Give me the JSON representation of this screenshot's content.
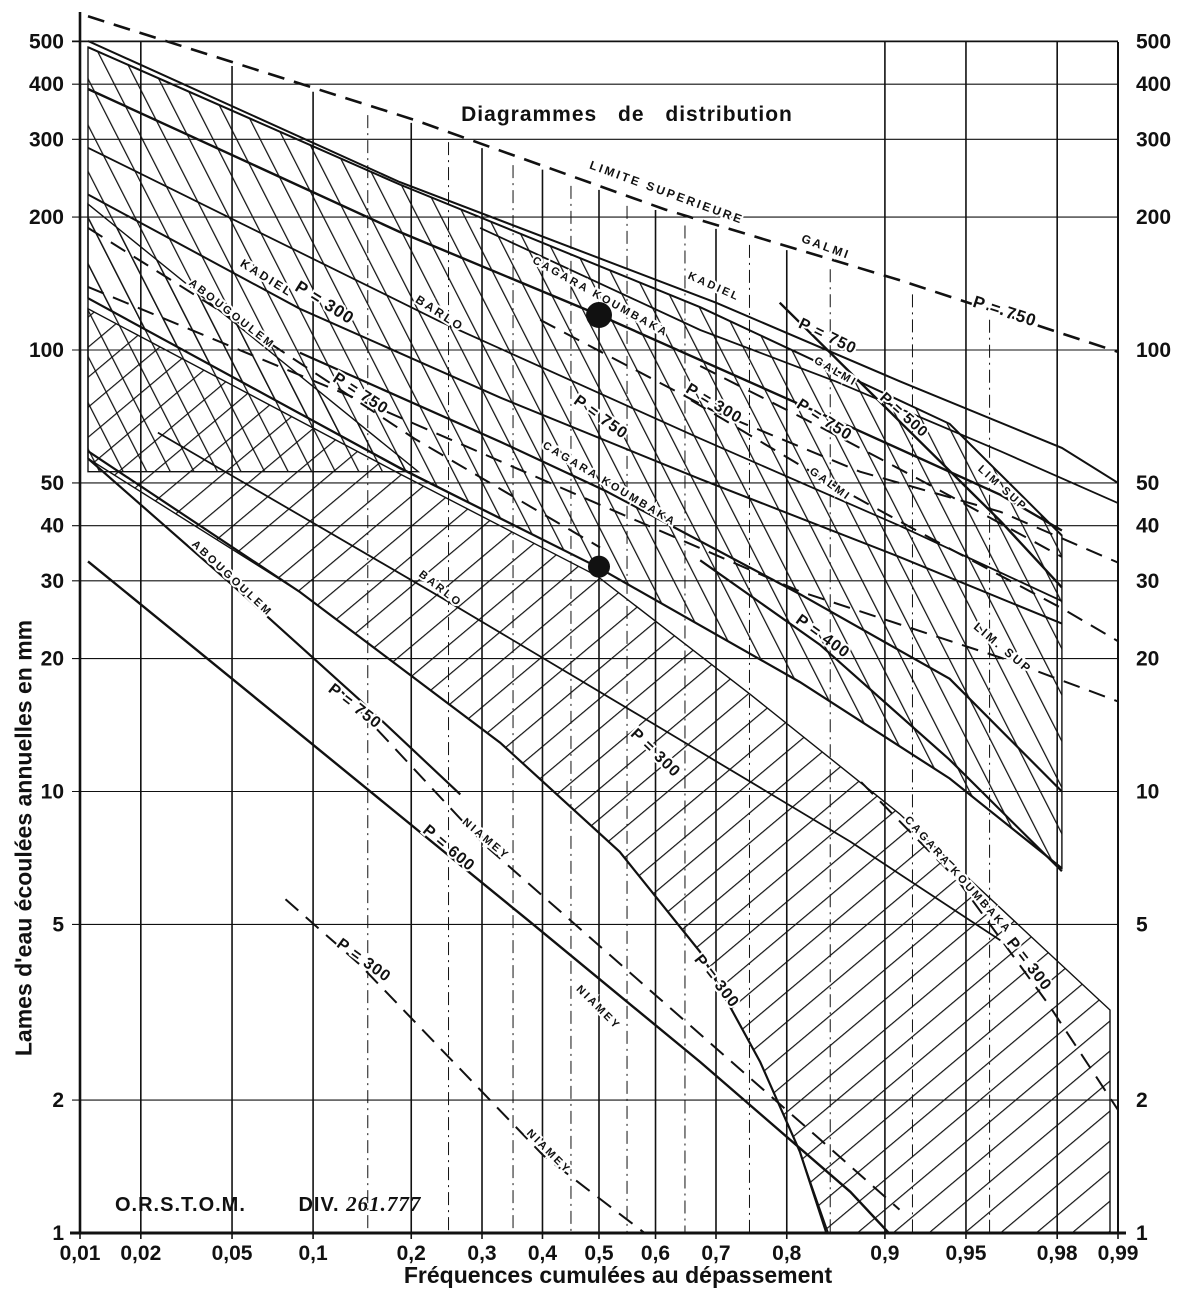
{
  "page": {
    "background": "#ffffff",
    "ink": "#111111"
  },
  "credit": {
    "org": "O.R.S.T.O.M.",
    "division_label": "DIV.",
    "division_number": "261.777"
  },
  "chart_data": {
    "type": "line",
    "title": "Diagrammes de distribution",
    "xlabel": "Fréquences cumulées au dépassement",
    "ylabel": "Lames d'eau écoulées annuelles en mm",
    "x_scale": "normal-probability",
    "y_scale": "log",
    "xlim": [
      0.01,
      0.99
    ],
    "ylim": [
      1,
      580
    ],
    "grid": true,
    "x_ticks": [
      {
        "label": "0,01",
        "p": 0.01
      },
      {
        "label": "0,02",
        "p": 0.02
      },
      {
        "label": "0,05",
        "p": 0.05
      },
      {
        "label": "0,1",
        "p": 0.1
      },
      {
        "label": "0,2",
        "p": 0.2
      },
      {
        "label": "0,3",
        "p": 0.3
      },
      {
        "label": "0,4",
        "p": 0.4
      },
      {
        "label": "0,5",
        "p": 0.5
      },
      {
        "label": "0,6",
        "p": 0.6
      },
      {
        "label": "0,7",
        "p": 0.7
      },
      {
        "label": "0,8",
        "p": 0.8
      },
      {
        "label": "0,9",
        "p": 0.9
      },
      {
        "label": "0,95",
        "p": 0.95
      },
      {
        "label": "0,98",
        "p": 0.98
      },
      {
        "label": "0,99",
        "p": 0.99
      }
    ],
    "minor_x_ticks": [
      0.15,
      0.25,
      0.35,
      0.45,
      0.55,
      0.65,
      0.75,
      0.85,
      0.92,
      0.96
    ],
    "y_ticks": [
      {
        "label": "500",
        "v": 500
      },
      {
        "label": "400",
        "v": 400
      },
      {
        "label": "300",
        "v": 300
      },
      {
        "label": "200",
        "v": 200
      },
      {
        "label": "100",
        "v": 100
      },
      {
        "label": "50",
        "v": 50
      },
      {
        "label": "40",
        "v": 40
      },
      {
        "label": "30",
        "v": 30
      },
      {
        "label": "20",
        "v": 20
      },
      {
        "label": "10",
        "v": 10
      },
      {
        "label": "5",
        "v": 5
      },
      {
        "label": "2",
        "v": 2
      },
      {
        "label": "1",
        "v": 1
      }
    ],
    "series": [
      {
        "name": "galmi-limite-superieure-p750",
        "style": "dashed",
        "width": 2.6,
        "points": [
          [
            0.011,
            570
          ],
          [
            0.204,
            332
          ],
          [
            0.617,
            208
          ],
          [
            0.911,
            144
          ],
          [
            0.99,
            99
          ]
        ]
      },
      {
        "name": "upper-band-top-boundary",
        "style": "solid",
        "width": 2.0,
        "points": [
          [
            0.011,
            485
          ],
          [
            0.186,
            237
          ],
          [
            0.675,
            125
          ],
          [
            0.942,
            68
          ],
          [
            0.981,
            38
          ]
        ]
      },
      {
        "name": "kadiel-p750",
        "style": "solid",
        "width": 2.0,
        "points": [
          [
            0.011,
            501
          ],
          [
            0.186,
            240
          ],
          [
            0.7,
            128
          ],
          [
            0.911,
            85
          ],
          [
            0.981,
            60
          ],
          [
            0.99,
            50
          ]
        ]
      },
      {
        "name": "cagara-koumbaka-p750",
        "style": "solid",
        "width": 2.4,
        "points": [
          [
            0.011,
            390
          ],
          [
            0.186,
            185
          ],
          [
            0.5,
            120
          ],
          [
            0.87,
            67
          ],
          [
            0.964,
            47
          ],
          [
            0.981,
            39
          ]
        ]
      },
      {
        "name": "barlo-upper",
        "style": "solid",
        "width": 1.8,
        "points": [
          [
            0.011,
            287
          ],
          [
            0.238,
            116
          ],
          [
            0.675,
            63
          ],
          [
            0.911,
            40
          ],
          [
            0.981,
            27
          ]
        ]
      },
      {
        "name": "kadiel-p300",
        "style": "solid",
        "width": 2.0,
        "points": [
          [
            0.011,
            225
          ],
          [
            0.09,
            124
          ],
          [
            0.329,
            78
          ],
          [
            0.675,
            51
          ],
          [
            0.911,
            34
          ],
          [
            0.981,
            24
          ]
        ]
      },
      {
        "name": "galmi-mid",
        "style": "solid",
        "width": 1.8,
        "points": [
          [
            0.297,
            189
          ],
          [
            0.675,
            111
          ],
          [
            0.855,
            85
          ],
          [
            0.964,
            59
          ],
          [
            0.99,
            45
          ]
        ]
      },
      {
        "name": "galmi-p500",
        "style": "solid",
        "width": 2.4,
        "points": [
          [
            0.791,
            128
          ],
          [
            0.915,
            67
          ],
          [
            0.964,
            41
          ],
          [
            0.981,
            29
          ]
        ]
      },
      {
        "name": "cagara-koumbaka-lower",
        "style": "solid",
        "width": 2.2,
        "points": [
          [
            0.09,
            98.6
          ],
          [
            0.329,
            62
          ],
          [
            0.511,
            48
          ],
          [
            0.816,
            28
          ],
          [
            0.942,
            18
          ],
          [
            0.981,
            10
          ]
        ]
      },
      {
        "name": "cagara-koumbaka-median",
        "style": "solid",
        "width": 2.2,
        "points": [
          [
            0.011,
            131
          ],
          [
            0.186,
            54
          ],
          [
            0.496,
            32.3
          ],
          [
            0.816,
            17.7
          ],
          [
            0.942,
            10.7
          ],
          [
            0.981,
            6.7
          ]
        ]
      },
      {
        "name": "barlo-lower",
        "style": "solid",
        "width": 1.8,
        "points": [
          [
            0.024,
            65
          ],
          [
            0.238,
            27.6
          ],
          [
            0.59,
            14.4
          ],
          [
            0.87,
            7.7
          ],
          [
            0.964,
            4.6
          ]
        ]
      },
      {
        "name": "p400-line",
        "style": "solid",
        "width": 2.2,
        "points": [
          [
            0.675,
            33.4
          ],
          [
            0.839,
            21.5
          ],
          [
            0.942,
            11.8
          ],
          [
            0.981,
            6.6
          ]
        ]
      },
      {
        "name": "niamey-p600",
        "style": "solid",
        "width": 2.4,
        "points": [
          [
            0.011,
            33.2
          ],
          [
            0.098,
            12.9
          ],
          [
            0.379,
            5.06
          ],
          [
            0.675,
            2.44
          ],
          [
            0.87,
            1.24
          ],
          [
            0.903,
            1.0
          ]
        ]
      },
      {
        "name": "p300-lower-boundary",
        "style": "solid",
        "width": 2.2,
        "points": [
          [
            0.011,
            59
          ],
          [
            0.09,
            28.3
          ],
          [
            0.329,
            12.9
          ],
          [
            0.537,
            7.3
          ],
          [
            0.675,
            4.33
          ],
          [
            0.765,
            2.44
          ],
          [
            0.816,
            1.53
          ],
          [
            0.846,
            1.0
          ]
        ]
      },
      {
        "name": "abougoulem-lower-boundary",
        "style": "solid",
        "width": 2.2,
        "points": [
          [
            0.011,
            56.8
          ],
          [
            0.05,
            29.4
          ],
          [
            0.142,
            16.1
          ],
          [
            0.267,
            9.85
          ]
        ]
      },
      {
        "name": "cagara-limite-sup-p300",
        "style": "dashed",
        "width": 2.0,
        "points": [
          [
            0.396,
            117
          ],
          [
            0.694,
            73
          ],
          [
            0.879,
            53
          ],
          [
            0.964,
            43
          ],
          [
            0.99,
            33
          ]
        ]
      },
      {
        "name": "limite-sup-lower-p750",
        "style": "dashed",
        "width": 2.0,
        "points": [
          [
            0.011,
            139
          ],
          [
            0.142,
            77
          ],
          [
            0.502,
            44.6
          ],
          [
            0.816,
            28.4
          ],
          [
            0.964,
            20.1
          ],
          [
            0.99,
            16
          ]
        ]
      },
      {
        "name": "galmi-limite-sup-2",
        "style": "dashed",
        "width": 2.0,
        "points": [
          [
            0.66,
            77
          ],
          [
            0.855,
            49.2
          ],
          [
            0.942,
            35.5
          ],
          [
            0.981,
            26
          ],
          [
            0.99,
            21.9
          ]
        ]
      },
      {
        "name": "p750-right-dashed",
        "style": "dashed",
        "width": 2.0,
        "points": [
          [
            0.675,
            92
          ],
          [
            0.839,
            67
          ],
          [
            0.937,
            48
          ],
          [
            0.981,
            34
          ]
        ]
      },
      {
        "name": "abougoulem-upper-dashed",
        "style": "dashed",
        "width": 2.0,
        "points": [
          [
            0.011,
            189
          ],
          [
            0.05,
            118
          ],
          [
            0.204,
            63
          ],
          [
            0.502,
            35.7
          ]
        ]
      },
      {
        "name": "niamey-dashed",
        "style": "dashed",
        "width": 2.0,
        "points": [
          [
            0.123,
            17
          ],
          [
            0.305,
            7.55
          ],
          [
            0.59,
            3.55
          ],
          [
            0.839,
            1.63
          ],
          [
            0.911,
            1.13
          ]
        ]
      },
      {
        "name": "niamey-p300-dashed",
        "style": "dashed",
        "width": 2.0,
        "points": [
          [
            0.08,
            5.7
          ],
          [
            0.142,
            4.05
          ],
          [
            0.401,
            1.5
          ],
          [
            0.581,
            1.0
          ]
        ]
      },
      {
        "name": "cagara-koumbaka-p300-dashed",
        "style": "dashed",
        "width": 2.0,
        "points": [
          [
            0.88,
            10.5
          ],
          [
            0.946,
            6.3
          ],
          [
            0.978,
            3.3
          ],
          [
            0.99,
            1.9
          ]
        ]
      }
    ],
    "bands": [
      {
        "name": "upper-hatched-band",
        "hatch": "steep",
        "polygon": [
          [
            0.011,
            485
          ],
          [
            0.186,
            237
          ],
          [
            0.675,
            125
          ],
          [
            0.942,
            68
          ],
          [
            0.981,
            38
          ],
          [
            0.981,
            6.7
          ],
          [
            0.942,
            10.7
          ],
          [
            0.816,
            17.7
          ],
          [
            0.496,
            32.3
          ],
          [
            0.186,
            54.2
          ],
          [
            0.011,
            131
          ]
        ]
      },
      {
        "name": "lower-hatched-band",
        "hatch": "up",
        "polygon": [
          [
            0.011,
            124
          ],
          [
            0.186,
            52.4
          ],
          [
            0.496,
            30.8
          ],
          [
            0.751,
            16.6
          ],
          [
            0.911,
            8.9
          ],
          [
            0.973,
            4.74
          ],
          [
            0.989,
            3.2
          ],
          [
            0.989,
            1.0
          ],
          [
            0.848,
            1.0
          ],
          [
            0.816,
            1.53
          ],
          [
            0.765,
            2.44
          ],
          [
            0.675,
            4.33
          ],
          [
            0.537,
            7.3
          ],
          [
            0.329,
            12.9
          ],
          [
            0.09,
            28.3
          ],
          [
            0.011,
            56.8
          ]
        ]
      },
      {
        "name": "corner-crosshatch",
        "hatch": "steep",
        "polygon": [
          [
            0.011,
            214
          ],
          [
            0.209,
            53
          ],
          [
            0.011,
            53
          ]
        ]
      }
    ],
    "points": [
      {
        "name": "observed-point-upper",
        "p": 0.5,
        "v": 120,
        "r": 13
      },
      {
        "name": "observed-point-lower",
        "p": 0.5,
        "v": 32.3,
        "r": 11
      }
    ],
    "annotations": [
      {
        "text": "LIMITE  SUPERIEURE",
        "p": 0.617,
        "v": 223,
        "rot": 20,
        "size": 12,
        "kind": "station"
      },
      {
        "text": "GALMI",
        "p": 0.844,
        "v": 168,
        "rot": 20,
        "size": 12,
        "kind": "station"
      },
      {
        "text": "P = 750",
        "p": 0.965,
        "v": 119,
        "rot": 18,
        "size": 17,
        "kind": "p"
      },
      {
        "text": "KADIEL",
        "p": 0.067,
        "v": 143,
        "rot": 32,
        "size": 12,
        "kind": "station"
      },
      {
        "text": "P = 300",
        "p": 0.107,
        "v": 125,
        "rot": 32,
        "size": 17,
        "kind": "p"
      },
      {
        "text": "ABOUGOULEM",
        "p": 0.049,
        "v": 119,
        "rot": 38,
        "size": 11,
        "kind": "station"
      },
      {
        "text": "BARLO",
        "p": 0.235,
        "v": 119,
        "rot": 33,
        "size": 12,
        "kind": "station"
      },
      {
        "text": "CAGARA  KOUMBAKA",
        "p": 0.5,
        "v": 130,
        "rot": 29,
        "size": 11,
        "kind": "station"
      },
      {
        "text": "KADIEL",
        "p": 0.695,
        "v": 137,
        "rot": 24,
        "size": 11,
        "kind": "station"
      },
      {
        "text": "P = 750",
        "p": 0.845,
        "v": 105,
        "rot": 26,
        "size": 16,
        "kind": "p"
      },
      {
        "text": "GALMI",
        "p": 0.854,
        "v": 88,
        "rot": 30,
        "size": 11,
        "kind": "station"
      },
      {
        "text": "P = 300",
        "p": 0.693,
        "v": 74,
        "rot": 31,
        "size": 16,
        "kind": "p"
      },
      {
        "text": "P = 750",
        "p": 0.841,
        "v": 68,
        "rot": 33,
        "size": 16,
        "kind": "p"
      },
      {
        "text": "P = 500",
        "p": 0.912,
        "v": 70,
        "rot": 42,
        "size": 15,
        "kind": "p"
      },
      {
        "text": "P = 750",
        "p": 0.14,
        "v": 78,
        "rot": 33,
        "size": 16,
        "kind": "p"
      },
      {
        "text": "P = 750",
        "p": 0.498,
        "v": 69,
        "rot": 36,
        "size": 16,
        "kind": "p"
      },
      {
        "text": "CAGARA  KOUMBAKA",
        "p": 0.516,
        "v": 49,
        "rot": 31,
        "size": 11,
        "kind": "station"
      },
      {
        "text": "GALMI",
        "p": 0.848,
        "v": 49,
        "rot": 36,
        "size": 11,
        "kind": "station"
      },
      {
        "text": "LIM  SUP",
        "p": 0.964,
        "v": 48,
        "rot": 42,
        "size": 11,
        "kind": "station"
      },
      {
        "text": "P = 400",
        "p": 0.839,
        "v": 22,
        "rot": 36,
        "size": 16,
        "kind": "p"
      },
      {
        "text": "LIM.  SUP",
        "p": 0.964,
        "v": 20.8,
        "rot": 40,
        "size": 12,
        "kind": "station"
      },
      {
        "text": "ABOUGOULEM",
        "p": 0.049,
        "v": 30,
        "rot": 43,
        "size": 11,
        "kind": "station"
      },
      {
        "text": "BARLO",
        "p": 0.236,
        "v": 28.4,
        "rot": 38,
        "size": 11,
        "kind": "station"
      },
      {
        "text": "P = 750",
        "p": 0.134,
        "v": 15.3,
        "rot": 38,
        "size": 16,
        "kind": "p"
      },
      {
        "text": "P = 600",
        "p": 0.246,
        "v": 7.3,
        "rot": 40,
        "size": 16,
        "kind": "p"
      },
      {
        "text": "NIAMEY",
        "p": 0.303,
        "v": 7.7,
        "rot": 40,
        "size": 11,
        "kind": "station"
      },
      {
        "text": "P = 300",
        "p": 0.594,
        "v": 12.0,
        "rot": 44,
        "size": 16,
        "kind": "p"
      },
      {
        "text": "NIAMEY",
        "p": 0.495,
        "v": 3.2,
        "rot": 45,
        "size": 11,
        "kind": "station"
      },
      {
        "text": "P = 300",
        "p": 0.695,
        "v": 3.66,
        "rot": 52,
        "size": 16,
        "kind": "p"
      },
      {
        "text": "CAGARA  KOUMBAKA",
        "p": 0.945,
        "v": 6.4,
        "rot": 48,
        "size": 11,
        "kind": "station"
      },
      {
        "text": "P = 300",
        "p": 0.972,
        "v": 4.0,
        "rot": 52,
        "size": 16,
        "kind": "p"
      },
      {
        "text": "P = 300",
        "p": 0.143,
        "v": 4.06,
        "rot": 36,
        "size": 16,
        "kind": "p"
      },
      {
        "text": "NIAMEY",
        "p": 0.407,
        "v": 1.51,
        "rot": 45,
        "size": 11,
        "kind": "station"
      }
    ]
  }
}
